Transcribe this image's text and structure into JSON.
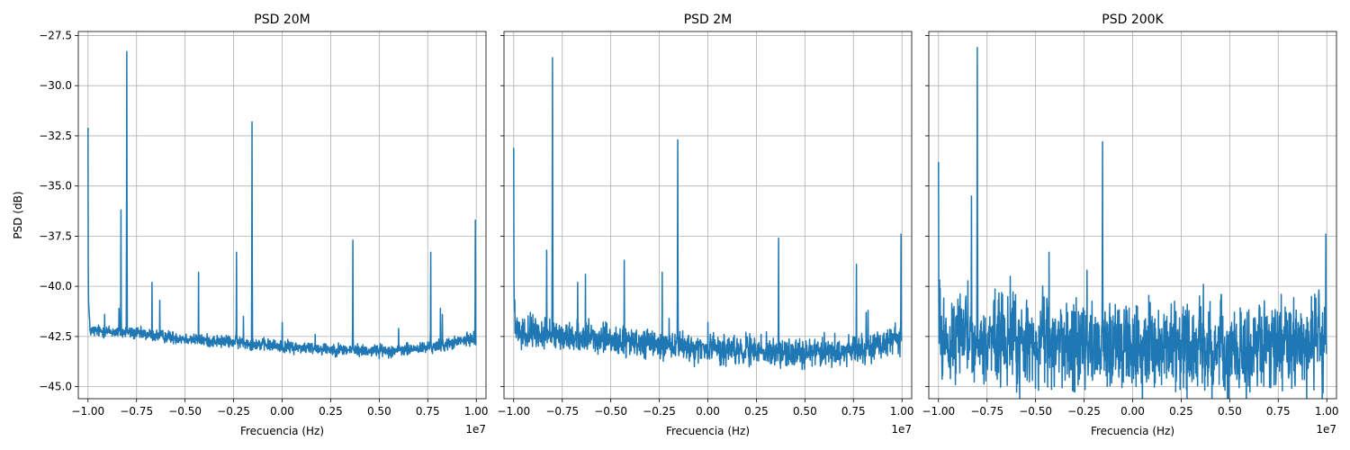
{
  "chart_data": [
    {
      "type": "line",
      "title": "PSD 20M",
      "xlabel": "Frecuencia (Hz)",
      "ylabel": "PSD (dB)",
      "x_offset_text": "1e7",
      "xlim": [
        -10500000,
        10500000
      ],
      "ylim": [
        -45.6,
        -27.3
      ],
      "xticks": [
        -10000000,
        -7500000,
        -5000000,
        -2500000,
        0,
        2500000,
        5000000,
        7500000,
        10000000
      ],
      "xtick_labels": [
        "−1.00",
        "−0.75",
        "−0.50",
        "−0.25",
        "0.00",
        "0.25",
        "0.50",
        "0.75",
        "1.00"
      ],
      "yticks": [
        -45.0,
        -42.5,
        -40.0,
        -37.5,
        -35.0,
        -32.5,
        -30.0,
        -27.5
      ],
      "ytick_labels": [
        "−45.0",
        "−42.5",
        "−40.0",
        "−37.5",
        "−35.0",
        "−32.5",
        "−30.0",
        "−27.5"
      ],
      "grid": true,
      "series": [
        {
          "color": "#1f77b4",
          "noise": 0.15,
          "baseline": [
            [
              -10000000,
              -42.2
            ],
            [
              -8000000,
              -42.3
            ],
            [
              -6000000,
              -42.5
            ],
            [
              -4000000,
              -42.7
            ],
            [
              -2000000,
              -42.8
            ],
            [
              0,
              -43.0
            ],
            [
              2000000,
              -43.1
            ],
            [
              4000000,
              -43.2
            ],
            [
              6000000,
              -43.2
            ],
            [
              8000000,
              -43.0
            ],
            [
              9800000,
              -42.6
            ]
          ],
          "peaks": [
            [
              -10000000,
              -32.1
            ],
            [
              -9150000,
              -41.4
            ],
            [
              -8400000,
              -41.1
            ],
            [
              -8300000,
              -36.2
            ],
            [
              -8000000,
              -28.3
            ],
            [
              -6700000,
              -39.8
            ],
            [
              -6300000,
              -40.7
            ],
            [
              -4300000,
              -39.3
            ],
            [
              -2350000,
              -38.3
            ],
            [
              -2000000,
              -41.5
            ],
            [
              -1550000,
              -31.8
            ],
            [
              0,
              -41.8
            ],
            [
              1700000,
              -42.4
            ],
            [
              3650000,
              -37.7
            ],
            [
              6000000,
              -42.1
            ],
            [
              7650000,
              -38.3
            ],
            [
              8150000,
              -41.1
            ],
            [
              8250000,
              -41.4
            ],
            [
              9950000,
              -36.7
            ]
          ]
        }
      ]
    },
    {
      "type": "line",
      "title": "PSD 2M",
      "xlabel": "Frecuencia (Hz)",
      "ylabel": "",
      "x_offset_text": "1e7",
      "xlim": [
        -10500000,
        10500000
      ],
      "ylim": [
        -45.6,
        -27.3
      ],
      "xticks": [
        -10000000,
        -7500000,
        -5000000,
        -2500000,
        0,
        2500000,
        5000000,
        7500000,
        10000000
      ],
      "xtick_labels": [
        "−1.00",
        "−0.75",
        "−0.50",
        "−0.25",
        "0.00",
        "0.25",
        "0.50",
        "0.75",
        "1.00"
      ],
      "yticks": [
        -45.0,
        -42.5,
        -40.0,
        -37.5,
        -35.0,
        -32.5,
        -30.0,
        -27.5
      ],
      "ytick_labels": [],
      "grid": true,
      "series": [
        {
          "color": "#1f77b4",
          "noise": 0.35,
          "baseline": [
            [
              -10000000,
              -42.3
            ],
            [
              -8000000,
              -42.4
            ],
            [
              -6000000,
              -42.6
            ],
            [
              -4000000,
              -42.8
            ],
            [
              -2000000,
              -43.0
            ],
            [
              0,
              -43.1
            ],
            [
              2000000,
              -43.2
            ],
            [
              4000000,
              -43.3
            ],
            [
              6000000,
              -43.3
            ],
            [
              8000000,
              -43.1
            ],
            [
              9800000,
              -42.6
            ]
          ],
          "peaks": [
            [
              -10000000,
              -33.1
            ],
            [
              -9150000,
              -41.3
            ],
            [
              -8300000,
              -38.2
            ],
            [
              -8000000,
              -28.6
            ],
            [
              -6700000,
              -39.8
            ],
            [
              -6300000,
              -39.4
            ],
            [
              -4300000,
              -38.7
            ],
            [
              -2350000,
              -39.3
            ],
            [
              -2000000,
              -41.6
            ],
            [
              -1550000,
              -32.7
            ],
            [
              0,
              -41.8
            ],
            [
              1500000,
              -42.6
            ],
            [
              3650000,
              -37.6
            ],
            [
              6000000,
              -42.3
            ],
            [
              7650000,
              -38.9
            ],
            [
              8150000,
              -41.3
            ],
            [
              8250000,
              -41.2
            ],
            [
              9950000,
              -37.4
            ]
          ]
        }
      ]
    },
    {
      "type": "line",
      "title": "PSD 200K",
      "xlabel": "Frecuencia (Hz)",
      "ylabel": "",
      "x_offset_text": "1e7",
      "xlim": [
        -10500000,
        10500000
      ],
      "ylim": [
        -45.6,
        -27.3
      ],
      "xticks": [
        -10000000,
        -7500000,
        -5000000,
        -2500000,
        0,
        2500000,
        5000000,
        7500000,
        10000000
      ],
      "xtick_labels": [
        "−1.00",
        "−0.75",
        "−0.50",
        "−0.25",
        "0.00",
        "0.25",
        "0.50",
        "0.75",
        "1.00"
      ],
      "yticks": [
        -45.0,
        -42.5,
        -40.0,
        -37.5,
        -35.0,
        -32.5,
        -30.0,
        -27.5
      ],
      "ytick_labels": [],
      "grid": true,
      "series": [
        {
          "color": "#1f77b4",
          "noise": 1.1,
          "baseline": [
            [
              -10000000,
              -42.6
            ],
            [
              -8000000,
              -42.7
            ],
            [
              -6000000,
              -42.8
            ],
            [
              -4000000,
              -42.9
            ],
            [
              -2000000,
              -43.0
            ],
            [
              0,
              -43.1
            ],
            [
              2000000,
              -43.1
            ],
            [
              4000000,
              -43.2
            ],
            [
              6000000,
              -43.2
            ],
            [
              8000000,
              -43.0
            ],
            [
              9800000,
              -42.8
            ]
          ],
          "peaks": [
            [
              -10000000,
              -33.8
            ],
            [
              -9200000,
              -41.0
            ],
            [
              -8300000,
              -35.5
            ],
            [
              -8000000,
              -28.1
            ],
            [
              -6700000,
              -40.4
            ],
            [
              -6300000,
              -39.5
            ],
            [
              -4300000,
              -38.3
            ],
            [
              -2350000,
              -39.2
            ],
            [
              -1550000,
              -32.8
            ],
            [
              1000000,
              -41.5
            ],
            [
              3650000,
              -39.9
            ],
            [
              7650000,
              -40.4
            ],
            [
              8150000,
              -41.4
            ],
            [
              9950000,
              -37.4
            ]
          ]
        }
      ]
    }
  ]
}
